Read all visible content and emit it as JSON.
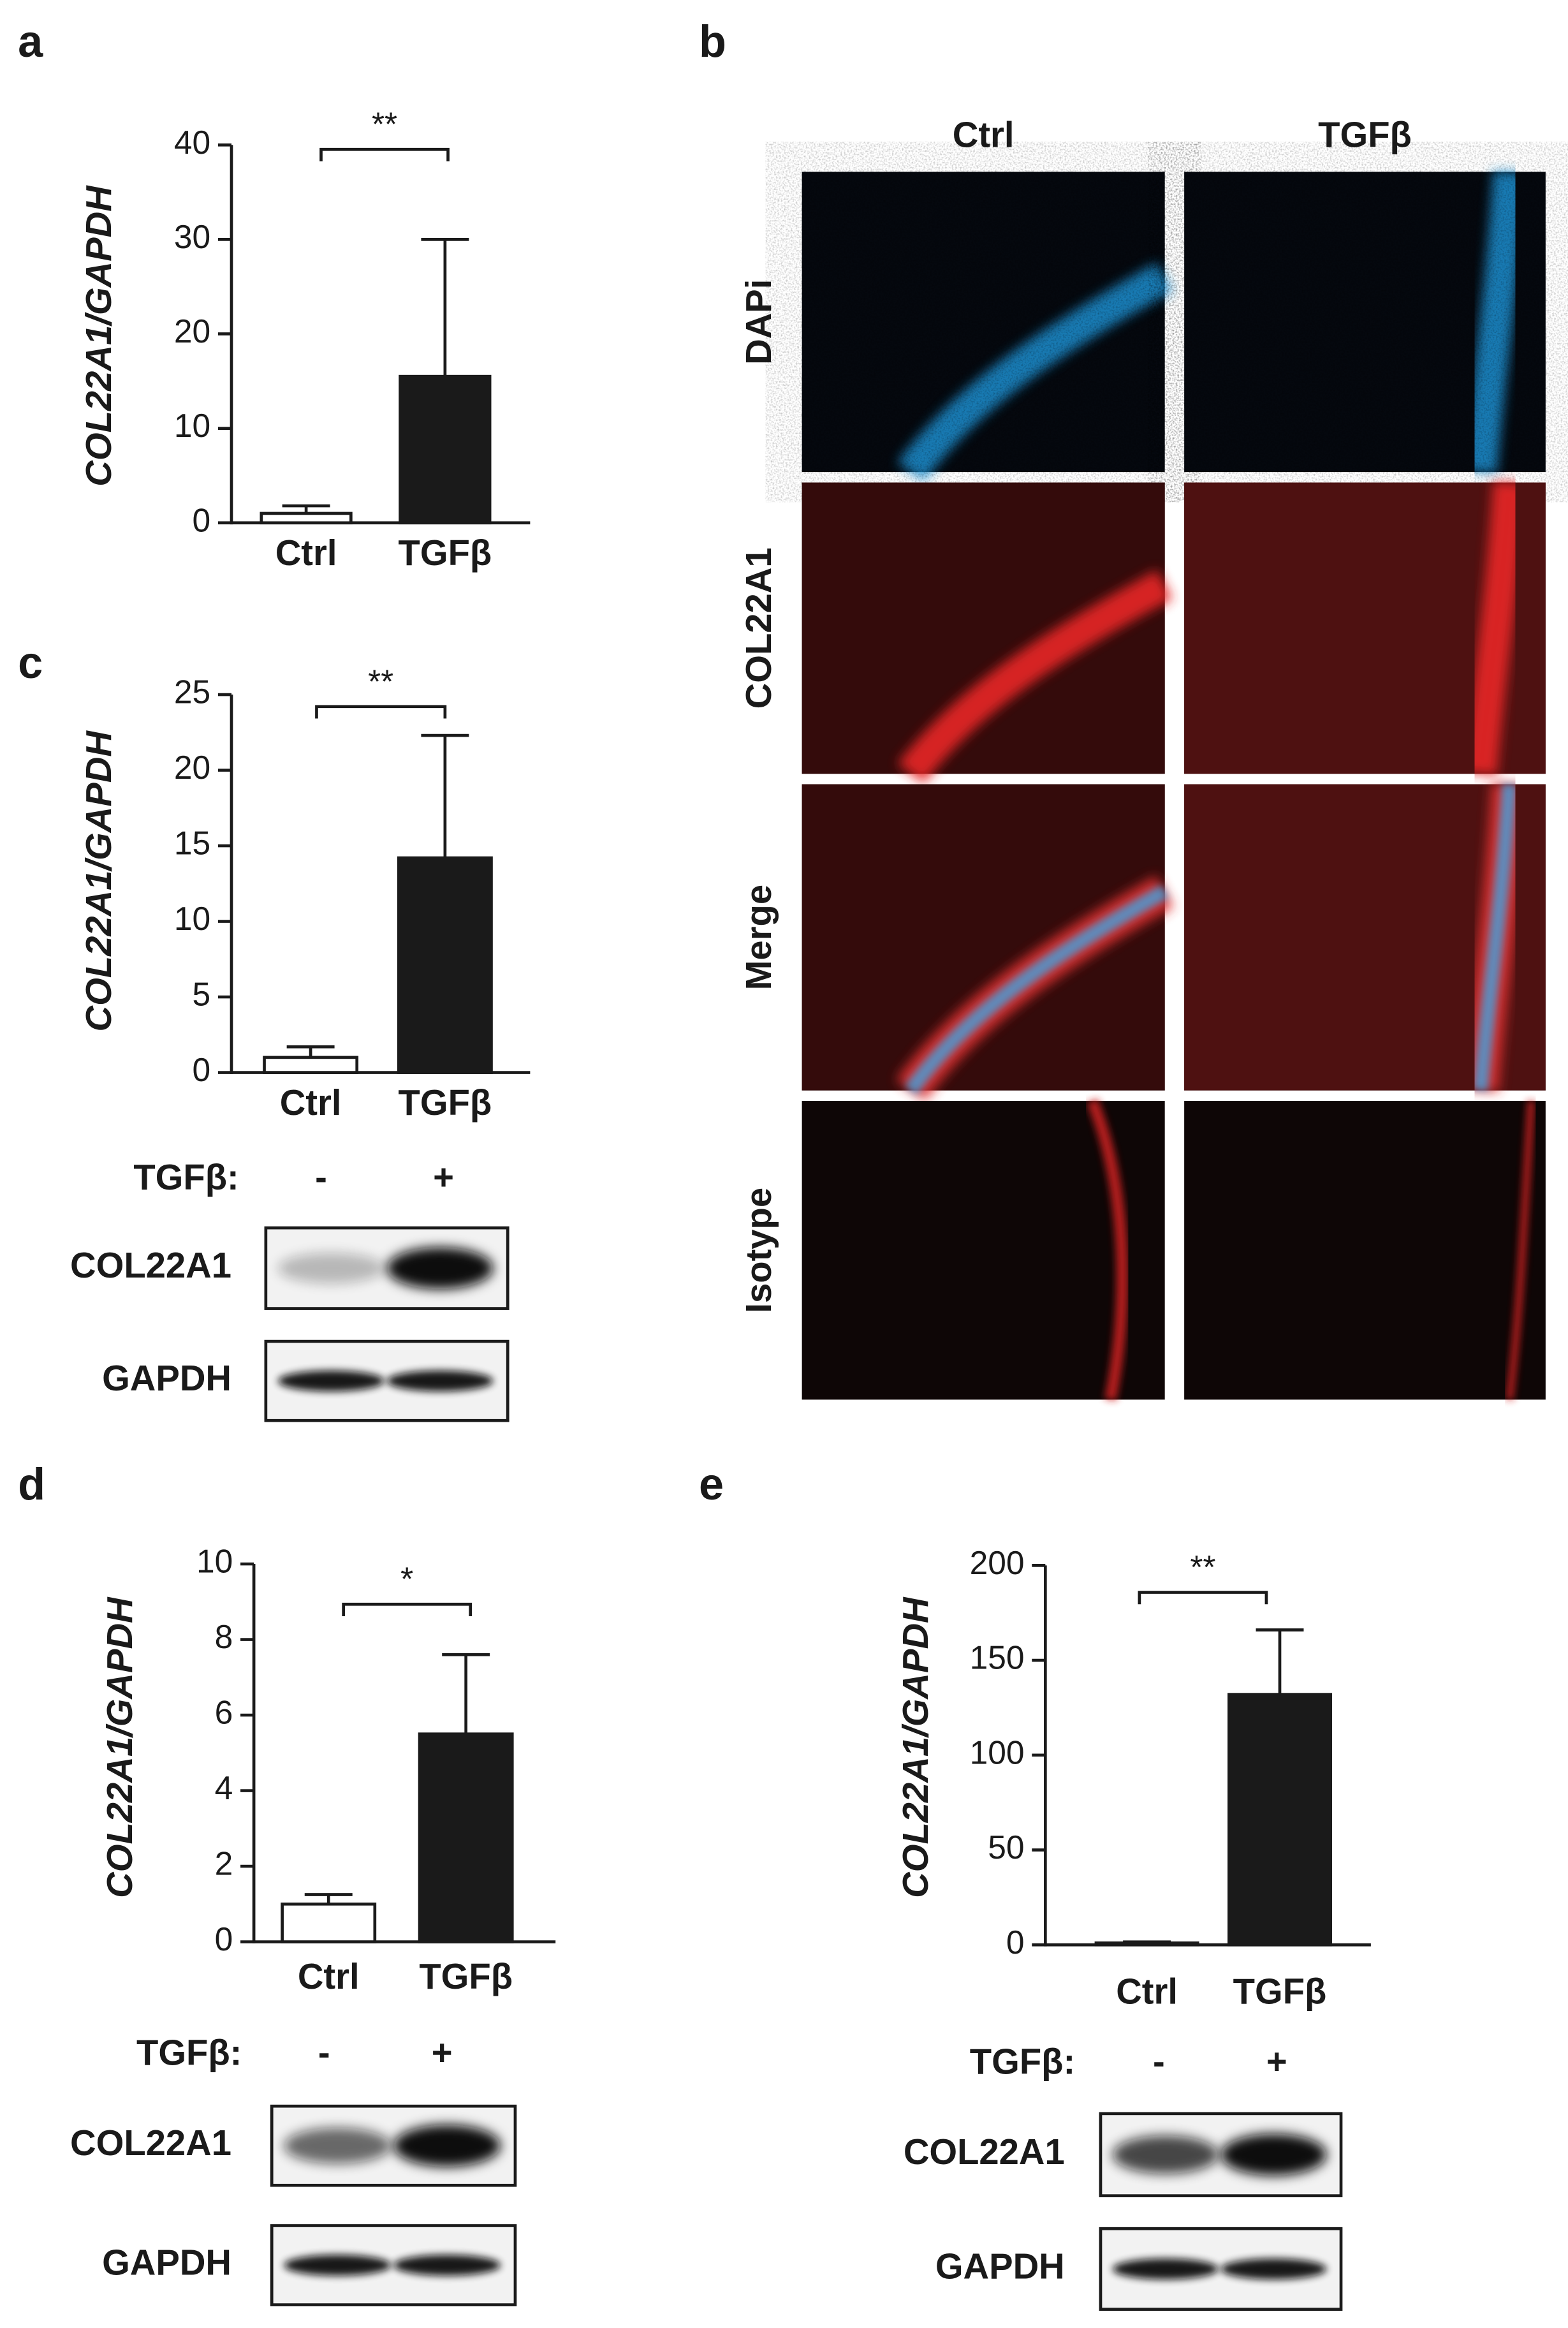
{
  "chart_data": [
    {
      "type": "bar",
      "panel": "a",
      "y_label": "COL22A1/GAPDH",
      "categories": [
        "Ctrl",
        "TGFβ"
      ],
      "values": [
        1.0,
        15.5
      ],
      "errors": [
        0.8,
        14.5
      ],
      "colors": [
        "#ffffff",
        "#1a1a1a"
      ],
      "ylim": [
        0,
        40
      ],
      "yticks": [
        0,
        10,
        20,
        30,
        40
      ],
      "significance": "**"
    },
    {
      "type": "bar",
      "panel": "c",
      "y_label": "COL22A1/GAPDH",
      "categories": [
        "Ctrl",
        "TGFβ"
      ],
      "values": [
        1.0,
        14.2
      ],
      "errors": [
        0.7,
        8.1
      ],
      "colors": [
        "#ffffff",
        "#1a1a1a"
      ],
      "ylim": [
        0,
        25
      ],
      "yticks": [
        0,
        5,
        10,
        15,
        20,
        25
      ],
      "significance": "**"
    },
    {
      "type": "bar",
      "panel": "d",
      "y_label": "COL22A1/GAPDH",
      "categories": [
        "Ctrl",
        "TGFβ"
      ],
      "values": [
        1.0,
        5.5
      ],
      "errors": [
        0.25,
        2.1
      ],
      "colors": [
        "#ffffff",
        "#1a1a1a"
      ],
      "ylim": [
        0,
        10
      ],
      "yticks": [
        0,
        2,
        4,
        6,
        8,
        10
      ],
      "significance": "*"
    },
    {
      "type": "bar",
      "panel": "e",
      "y_label": "COL22A1/GAPDH",
      "categories": [
        "Ctrl",
        "TGFβ"
      ],
      "values": [
        1,
        132
      ],
      "errors": [
        0.5,
        34
      ],
      "colors": [
        "#ffffff",
        "#1a1a1a"
      ],
      "ylim": [
        0,
        200
      ],
      "yticks": [
        0,
        50,
        100,
        150,
        200
      ],
      "significance": "**"
    }
  ],
  "micrograph": {
    "panel": "b",
    "columns": [
      "Ctrl",
      "TGFβ"
    ],
    "rows": [
      "DAPi",
      "COL22A1",
      "Merge",
      "Isotype"
    ]
  },
  "blots": [
    {
      "treatment": "TGFβ:",
      "lanes": [
        "-",
        "+"
      ],
      "rows": [
        "COL22A1",
        "GAPDH"
      ]
    },
    {
      "treatment": "TGFβ:",
      "lanes": [
        "-",
        "+"
      ],
      "rows": [
        "COL22A1",
        "GAPDH"
      ]
    },
    {
      "treatment": "TGFβ:",
      "lanes": [
        "-",
        "+"
      ],
      "rows": [
        "COL22A1",
        "GAPDH"
      ]
    }
  ]
}
